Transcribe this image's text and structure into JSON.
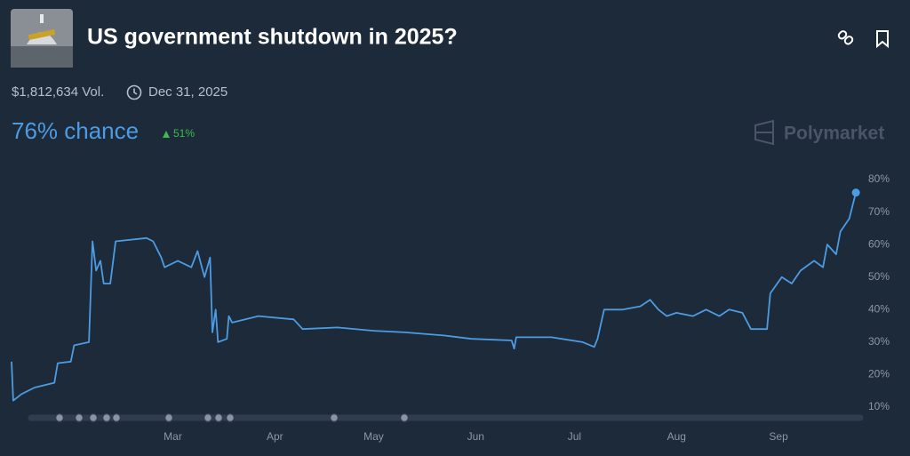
{
  "header": {
    "title": "US government shutdown in 2025?",
    "volume": "$1,812,634 Vol.",
    "end_date": "Dec 31, 2025",
    "chance": "76% chance",
    "change": "51%",
    "brand": "Polymarket"
  },
  "chart_data": {
    "type": "line",
    "x": [
      11,
      11.5,
      14,
      18,
      24,
      25,
      29,
      30,
      34.5,
      35.6,
      36.7,
      38,
      39,
      41,
      42.6,
      52,
      54,
      56.5,
      57.5,
      61.5,
      65.6,
      67.5,
      69.6,
      71.3,
      72,
      73,
      73.7,
      76.4,
      77,
      78,
      86,
      96.7,
      99.4,
      110,
      121,
      130.5,
      142.6,
      150.7,
      162.9,
      163.7,
      164.3,
      175,
      184.5,
      188,
      189,
      191,
      196.7,
      202,
      205,
      207.5,
      210,
      213,
      218,
      222,
      226,
      229,
      233,
      235.6,
      240.5,
      241.5,
      245,
      248,
      250.7,
      254.8,
      257.5,
      258.8,
      261.5,
      262.8,
      265.5,
      267.5
    ],
    "series": [
      {
        "color": "#4d9be2",
        "values": [
          24,
          12,
          14,
          16,
          17.5,
          23.5,
          24,
          29,
          30,
          61,
          52,
          55,
          48,
          48,
          61,
          62,
          61,
          56,
          53,
          55,
          53,
          58,
          50,
          56,
          33,
          40,
          30,
          31,
          38,
          36,
          38,
          37,
          34,
          34.5,
          33.5,
          33,
          32,
          31,
          30.5,
          28,
          31.5,
          31.5,
          30,
          28.5,
          31,
          40,
          40,
          41,
          43,
          40,
          38,
          39,
          38,
          40,
          38,
          40,
          39,
          34,
          34,
          45,
          50,
          48,
          52,
          55,
          53,
          60,
          57,
          64,
          68,
          76
        ]
      }
    ],
    "xlim": [
      11,
      268
    ],
    "xticks": [
      {
        "value": 60,
        "label": "Mar"
      },
      {
        "value": 91,
        "label": "Apr"
      },
      {
        "value": 121,
        "label": "May"
      },
      {
        "value": 152,
        "label": "Jun"
      },
      {
        "value": 182,
        "label": "Jul"
      },
      {
        "value": 213,
        "label": "Aug"
      },
      {
        "value": 244,
        "label": "Sep"
      }
    ],
    "ylim": [
      8,
      82
    ],
    "yticks": [
      {
        "value": 10,
        "label": "10%"
      },
      {
        "value": 20,
        "label": "20%"
      },
      {
        "value": 30,
        "label": "30%"
      },
      {
        "value": 40,
        "label": "40%"
      },
      {
        "value": 50,
        "label": "50%"
      },
      {
        "value": 60,
        "label": "60%"
      },
      {
        "value": 70,
        "label": "70%"
      },
      {
        "value": 80,
        "label": "80%"
      }
    ],
    "grid": false
  }
}
